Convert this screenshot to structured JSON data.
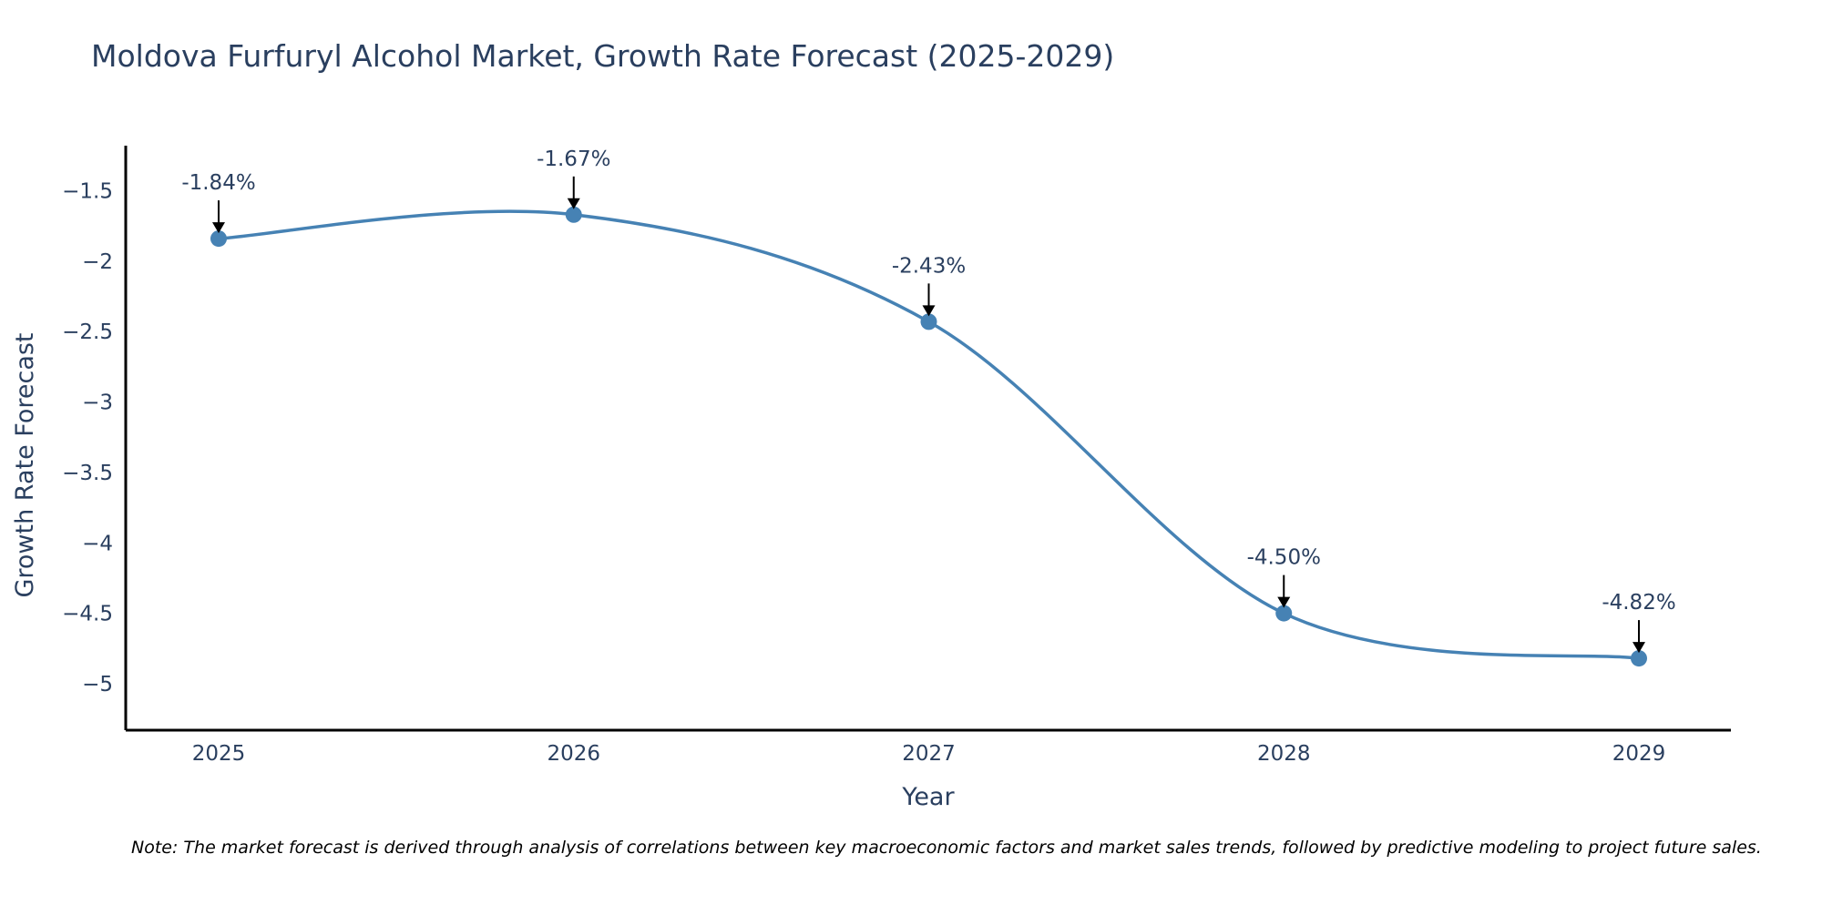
{
  "chart_data": {
    "type": "line",
    "title": "Moldova Furfuryl Alcohol Market, Growth Rate Forecast (2025-2029)",
    "xlabel": "Year",
    "ylabel": "Growth Rate Forecast",
    "categories": [
      "2025",
      "2026",
      "2027",
      "2028",
      "2029"
    ],
    "values": [
      -1.84,
      -1.67,
      -2.43,
      -4.5,
      -4.82
    ],
    "data_labels": [
      "-1.84%",
      "-1.67%",
      "-2.43%",
      "-4.50%",
      "-4.82%"
    ],
    "yticks": [
      -1.5,
      -2,
      -2.5,
      -3,
      -3.5,
      -4,
      -4.5,
      -5
    ],
    "ytick_labels": [
      "−1.5",
      "−2",
      "−2.5",
      "−3",
      "−3.5",
      "−4",
      "−4.5",
      "−5"
    ],
    "ylim": [
      -5.33,
      -1.18
    ],
    "line_color": "#4682b4",
    "annotation_color": "#000000",
    "grid": false,
    "note": "Note: The market forecast is derived through analysis of correlations between key macroeconomic factors and market sales trends, followed by predictive modeling to project future sales."
  }
}
